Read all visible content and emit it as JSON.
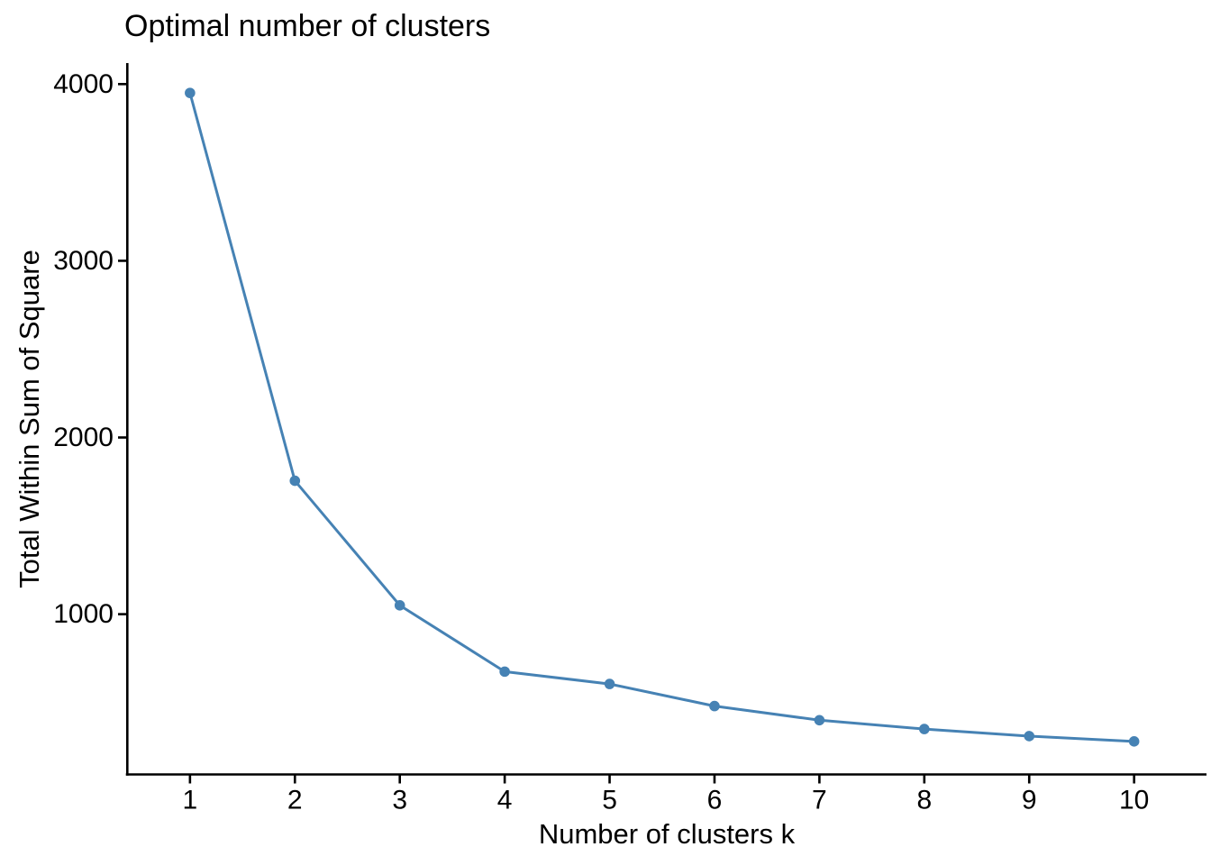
{
  "figure": {
    "title": "Optimal number of clusters",
    "xlabel": "Number of clusters k",
    "ylabel": "Total Within Sum of Square"
  },
  "chart_data": {
    "type": "line",
    "title": "Optimal number of clusters",
    "xlabel": "Number of clusters k",
    "ylabel": "Total Within Sum of Square",
    "series": [
      {
        "name": "total-within-sum-of-square",
        "x": [
          1,
          2,
          3,
          4,
          5,
          6,
          7,
          8,
          9,
          10
        ],
        "y": [
          3950,
          1755,
          1050,
          675,
          605,
          480,
          400,
          350,
          310,
          280
        ]
      }
    ],
    "xticks": [
      "1",
      "2",
      "3",
      "4",
      "5",
      "6",
      "7",
      "8",
      "9",
      "10"
    ],
    "xtick_values": [
      1,
      2,
      3,
      4,
      5,
      6,
      7,
      8,
      9,
      10
    ],
    "yticks": [
      "1000",
      "2000",
      "3000",
      "4000"
    ],
    "ytick_values": [
      1000,
      2000,
      3000,
      4000
    ],
    "xlim": [
      0.4,
      10.69
    ],
    "ylim": [
      93,
      4119
    ],
    "grid": false,
    "legend": "none",
    "theme": "classic",
    "line_color": "#4682B4",
    "point_color": "#4682B4",
    "axis_color": "#000000",
    "background_color": "#ffffff",
    "marker": "circle"
  }
}
